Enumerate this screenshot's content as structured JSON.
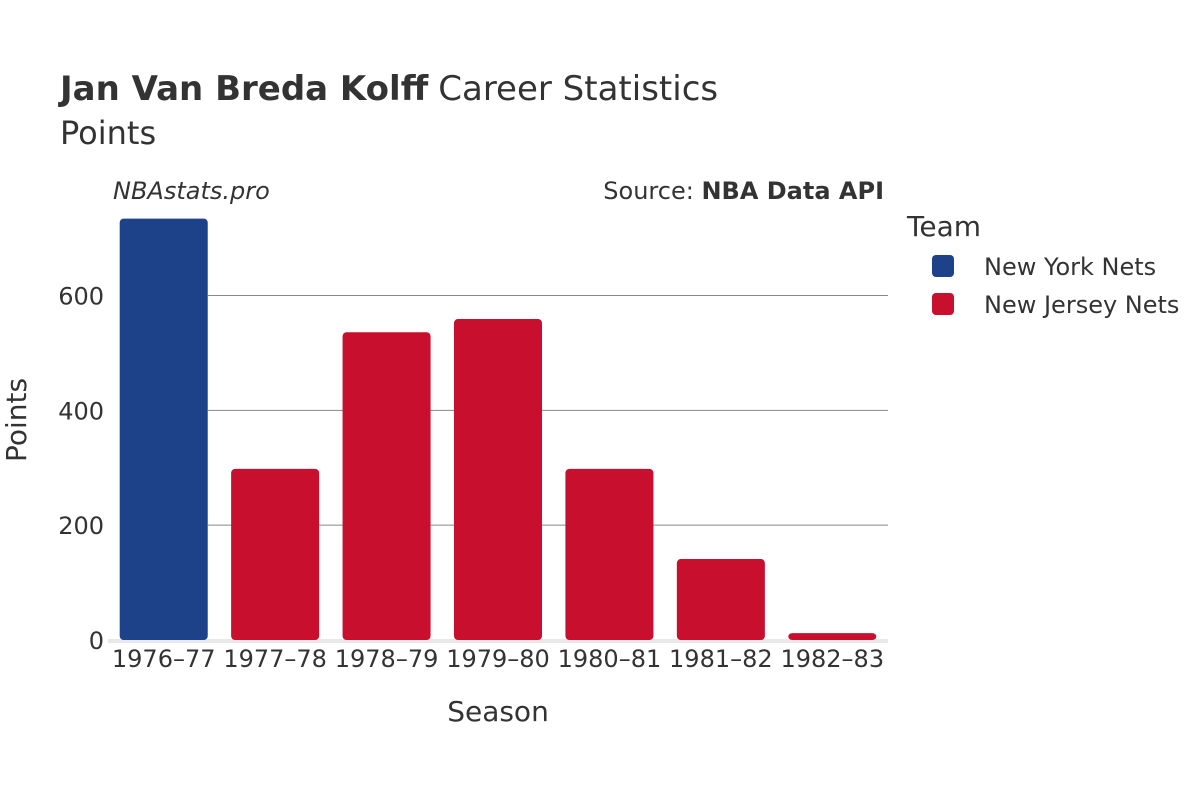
{
  "title": {
    "player": "Jan Van Breda Kolff",
    "rest": "Career Statistics",
    "subtitle": "Points"
  },
  "watermark": "NBAstats.pro",
  "source": {
    "prefix": "Source: ",
    "name": "NBA Data API"
  },
  "legend": {
    "title": "Team",
    "items": [
      {
        "label": "New York Nets",
        "color": "#1d428a"
      },
      {
        "label": "New Jersey Nets",
        "color": "#c8102e"
      }
    ]
  },
  "colors": {
    "grid": "#888888",
    "axis_line": "#e8e8e8",
    "text": "#333333"
  },
  "chart_data": {
    "type": "bar",
    "title": "Jan Van Breda Kolff Career Statistics Points",
    "xlabel": "Season",
    "ylabel": "Points",
    "ylim": [
      0,
      735
    ],
    "yticks": [
      0,
      200,
      400,
      600
    ],
    "categories": [
      "1976–77",
      "1977–78",
      "1978–79",
      "1979–80",
      "1980–81",
      "1981–82",
      "1982–83"
    ],
    "values": [
      734,
      298,
      536,
      559,
      298,
      141,
      12
    ],
    "teams": [
      "New York Nets",
      "New Jersey Nets",
      "New Jersey Nets",
      "New Jersey Nets",
      "New Jersey Nets",
      "New Jersey Nets",
      "New Jersey Nets"
    ]
  }
}
